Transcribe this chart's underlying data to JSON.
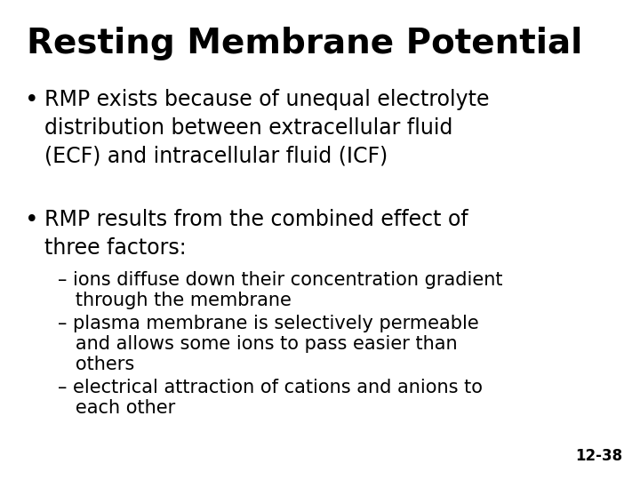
{
  "title": "Resting Membrane Potential",
  "background_color": "#ffffff",
  "text_color": "#000000",
  "title_fontsize": 28,
  "title_fontweight": "bold",
  "bullet1_text": "RMP exists because of unequal electrolyte\ndistribution between extracellular fluid\n(ECF) and intracellular fluid (ICF)",
  "bullet2_text": "RMP results from the combined effect of\nthree factors:",
  "sub1_line1": "– ions diffuse down their concentration gradient",
  "sub1_line2": "   through the membrane",
  "sub2_line1": "– plasma membrane is selectively permeable",
  "sub2_line2": "   and allows some ions to pass easier than",
  "sub2_line3": "   others",
  "sub3_line1": "– electrical attraction of cations and anions to",
  "sub3_line2": "   each other",
  "slide_number": "12-38",
  "bullet_fontsize": 17,
  "sub_fontsize": 15,
  "slide_number_fontsize": 12
}
